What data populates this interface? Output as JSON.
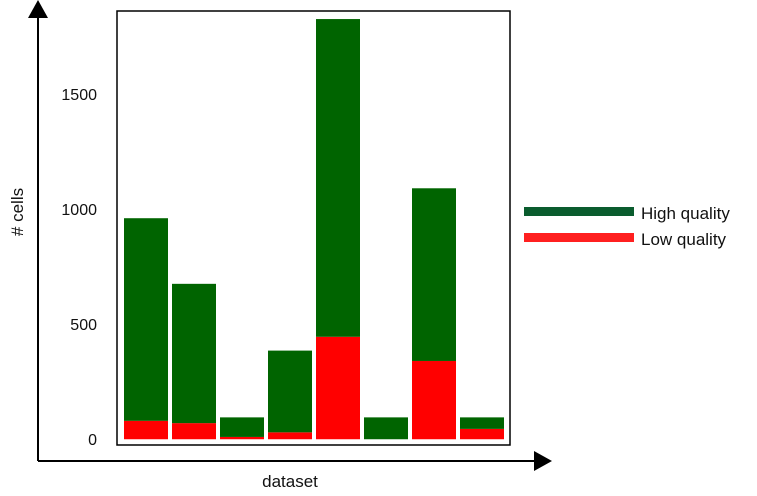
{
  "chart_data": {
    "type": "bar",
    "stacked": true,
    "title": "",
    "xlabel": "dataset",
    "ylabel": "# cells",
    "ylim": [
      -25,
      1860
    ],
    "yticks": [
      0,
      500,
      1000,
      1500
    ],
    "grid": false,
    "legend_position": "right",
    "series": [
      {
        "name": "Low quality",
        "color": "#ff0000",
        "values": [
          80,
          70,
          10,
          30,
          445,
          0,
          340,
          45
        ]
      },
      {
        "name": "High quality",
        "color": "#006400",
        "values": [
          880,
          605,
          85,
          355,
          1380,
          95,
          750,
          50
        ]
      }
    ]
  },
  "legend": {
    "items": [
      {
        "label": "High quality",
        "color": "#0a5c2e"
      },
      {
        "label": "Low quality",
        "color": "#ff2020"
      }
    ]
  }
}
